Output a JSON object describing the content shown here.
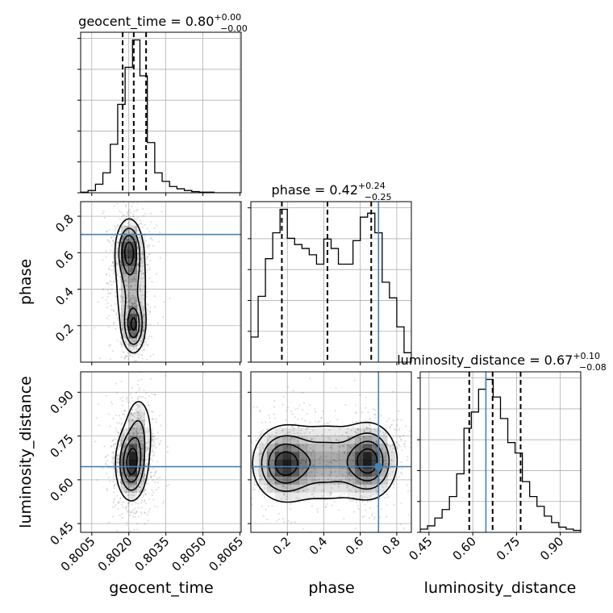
{
  "chart_data": {
    "type": "corner",
    "parameters": [
      "geocent_time",
      "phase",
      "luminosity_distance"
    ],
    "truths": {
      "geocent_time": null,
      "phase": 0.7,
      "luminosity_distance": 0.645
    },
    "ranges": {
      "geocent_time": [
        0.80005,
        0.80655
      ],
      "phase": [
        0.0,
        0.88
      ],
      "luminosity_distance": [
        0.42,
        0.97
      ]
    },
    "ticks": {
      "geocent_time": [
        0.8005,
        0.802,
        0.8035,
        0.805,
        0.8065
      ],
      "phase": [
        0.2,
        0.4,
        0.6,
        0.8
      ],
      "luminosity_distance": [
        0.45,
        0.6,
        0.75,
        0.9
      ]
    },
    "tick_labels": {
      "geocent_time": [
        "0.8005",
        "0.8020",
        "0.8035",
        "0.8050",
        "0.8065"
      ],
      "phase": [
        "0.2",
        "0.4",
        "0.6",
        "0.8"
      ],
      "luminosity_distance": [
        "0.45",
        "0.60",
        "0.75",
        "0.90"
      ]
    },
    "titles": [
      {
        "param": "geocent_time",
        "text": "geocent_time = 0.80",
        "sup": "+0.00",
        "sub": "−0.00"
      },
      {
        "param": "phase",
        "text": "phase = 0.42",
        "sup": "+0.24",
        "sub": "−0.25"
      },
      {
        "param": "luminosity_distance",
        "text": "luminosity_distance = 0.67",
        "sup": "+0.10",
        "sub": "−0.08"
      }
    ],
    "quantiles": {
      "geocent_time": [
        0.80175,
        0.8022,
        0.8027
      ],
      "phase": [
        0.17,
        0.42,
        0.66
      ],
      "luminosity_distance": [
        0.588,
        0.668,
        0.764
      ]
    },
    "histograms": {
      "geocent_time": {
        "edges": [
          0.80005,
          0.80035,
          0.80065,
          0.80095,
          0.80125,
          0.80155,
          0.80185,
          0.80215,
          0.80245,
          0.80275,
          0.80305,
          0.80335,
          0.80365,
          0.80395,
          0.80425,
          0.80455,
          0.80485,
          0.80515,
          0.80545,
          0.80575,
          0.80605,
          0.80635,
          0.80655
        ],
        "counts": [
          1,
          4,
          15,
          35,
          85,
          155,
          220,
          268,
          205,
          88,
          35,
          20,
          11,
          7,
          4,
          2,
          1,
          1,
          0,
          0,
          0,
          0
        ]
      },
      "phase": {
        "edges": [
          0.0,
          0.04,
          0.08,
          0.12,
          0.16,
          0.2,
          0.24,
          0.28,
          0.32,
          0.36,
          0.4,
          0.44,
          0.48,
          0.52,
          0.56,
          0.6,
          0.64,
          0.68,
          0.72,
          0.76,
          0.8,
          0.84,
          0.88
        ],
        "counts": [
          32,
          84,
          132,
          165,
          195,
          158,
          150,
          145,
          137,
          125,
          157,
          145,
          125,
          125,
          155,
          185,
          190,
          165,
          102,
          82,
          45,
          12
        ]
      },
      "luminosity_distance": {
        "edges": [
          0.42,
          0.445,
          0.47,
          0.495,
          0.52,
          0.545,
          0.57,
          0.595,
          0.62,
          0.645,
          0.67,
          0.695,
          0.72,
          0.745,
          0.77,
          0.795,
          0.82,
          0.845,
          0.87,
          0.895,
          0.92,
          0.945,
          0.97
        ],
        "counts": [
          5,
          10,
          22,
          35,
          55,
          90,
          160,
          185,
          220,
          235,
          208,
          175,
          138,
          122,
          78,
          55,
          40,
          25,
          15,
          8,
          5,
          3
        ]
      }
    },
    "densities": {
      "phase_vs_geocent_time": {
        "x": "geocent_time",
        "y": "phase",
        "peaks": [
          {
            "x": 0.802,
            "y": 0.61,
            "sx": 0.00025,
            "sy": 0.08,
            "w": 1.0
          },
          {
            "x": 0.8022,
            "y": 0.2,
            "sx": 0.00022,
            "sy": 0.07,
            "w": 0.9
          },
          {
            "x": 0.8021,
            "y": 0.42,
            "sx": 0.00035,
            "sy": 0.16,
            "w": 0.45
          }
        ]
      },
      "luminosity_distance_vs_geocent_time": {
        "x": "geocent_time",
        "y": "luminosity_distance",
        "peaks": [
          {
            "x": 0.8021,
            "y": 0.655,
            "sx": 0.0003,
            "sy": 0.06,
            "w": 1.0
          },
          {
            "x": 0.8024,
            "y": 0.76,
            "sx": 0.0003,
            "sy": 0.07,
            "w": 0.35
          }
        ]
      },
      "luminosity_distance_vs_phase": {
        "x": "phase",
        "y": "luminosity_distance",
        "peaks": [
          {
            "x": 0.18,
            "y": 0.655,
            "sx": 0.08,
            "sy": 0.06,
            "w": 1.0
          },
          {
            "x": 0.65,
            "y": 0.665,
            "sx": 0.07,
            "sy": 0.06,
            "w": 1.0
          },
          {
            "x": 0.42,
            "y": 0.66,
            "sx": 0.15,
            "sy": 0.07,
            "w": 0.55
          }
        ]
      }
    }
  }
}
